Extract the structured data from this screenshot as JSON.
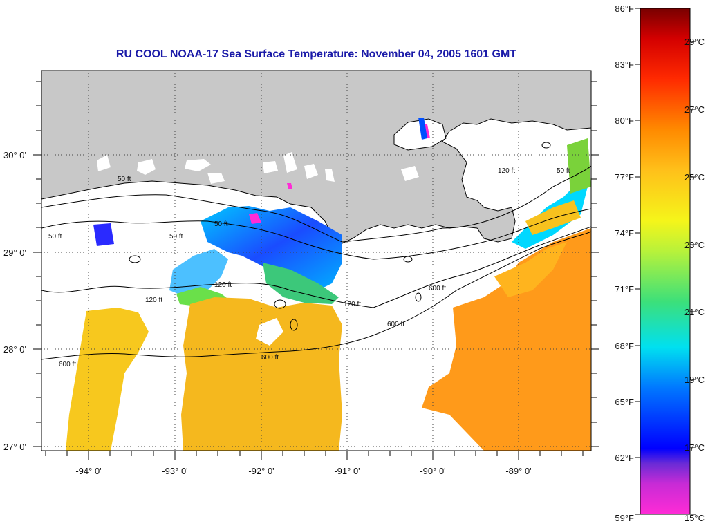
{
  "title": "RU COOL  NOAA-17  Sea Surface Temperature:  November 04, 2005 1601 GMT",
  "lon_labels": [
    "-94° 0'",
    "-93° 0'",
    "-92° 0'",
    "-91° 0'",
    "-90° 0'",
    "-89° 0'"
  ],
  "lat_labels": [
    "30° 0'",
    "29° 0'",
    "28° 0'",
    "27° 0'"
  ],
  "colorbar": {
    "fahrenheit": [
      "86°F",
      "83°F",
      "80°F",
      "77°F",
      "74°F",
      "71°F",
      "68°F",
      "65°F",
      "62°F",
      "59°F"
    ],
    "celsius": [
      "29°C",
      "27°C",
      "25°C",
      "23°C",
      "21°C",
      "19°C",
      "17°C",
      "15°C"
    ],
    "colors": [
      "#ff2bd6",
      "#7a2bd6",
      "#0000ff",
      "#00a0ff",
      "#00e8e8",
      "#3ce07a",
      "#b8f23a",
      "#f5f51a",
      "#ffb81a",
      "#ff7a00",
      "#ff1a00",
      "#c80000",
      "#7a0000"
    ]
  },
  "map_colors": {
    "land": "#c8c8c8",
    "sst_warm": "#f7c21e",
    "sst_hot": "#ff9a1a",
    "sst_cool": "#1e78ff"
  },
  "contour_labels": {
    "c50_a": "50 ft",
    "c50_b": "50 ft",
    "c50_c": "50 ft",
    "c50_d": "50 ft",
    "c50_e": "50 ft",
    "c120_a": "120 ft",
    "c120_b": "120 ft",
    "c120_c": "120 ft",
    "c120_d": "120 ft",
    "c600_a": "600 ft",
    "c600_b": "600 ft",
    "c600_c": "600 ft",
    "c600_d": "600 ft"
  }
}
